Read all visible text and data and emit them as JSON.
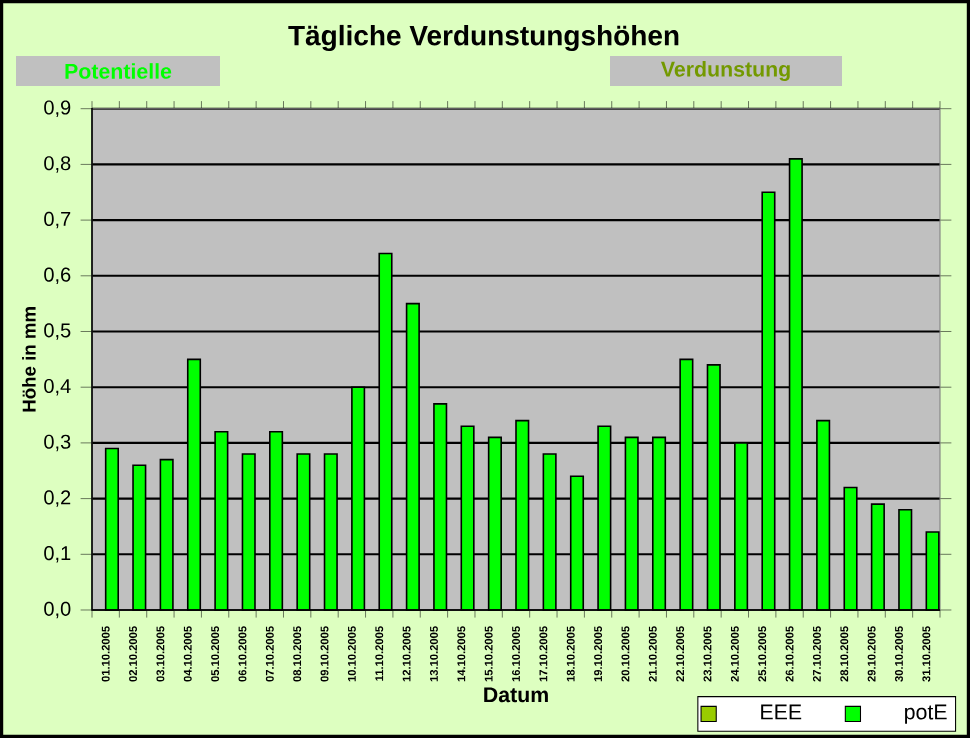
{
  "chart_data": {
    "type": "bar",
    "title": "Tägliche Verdunstungshöhen",
    "annotations": [
      "Potentielle",
      "Verdunstung"
    ],
    "xlabel": "Datum",
    "ylabel": "Höhe in mm",
    "categories": [
      "01.10.2005",
      "02.10.2005",
      "03.10.2005",
      "04.10.2005",
      "05.10.2005",
      "06.10.2005",
      "07.10.2005",
      "08.10.2005",
      "09.10.2005",
      "10.10.2005",
      "11.10.2005",
      "12.10.2005",
      "13.10.2005",
      "14.10.2005",
      "15.10.2005",
      "16.10.2005",
      "17.10.2005",
      "18.10.2005",
      "19.10.2005",
      "20.10.2005",
      "21.10.2005",
      "22.10.2005",
      "23.10.2005",
      "24.10.2005",
      "25.10.2005",
      "26.10.2005",
      "27.10.2005",
      "28.10.2005",
      "29.10.2005",
      "30.10.2005",
      "31.10.2005"
    ],
    "series": [
      {
        "name": "EEE",
        "color": "#99cc00",
        "values": [
          null,
          null,
          null,
          null,
          null,
          null,
          null,
          null,
          null,
          null,
          null,
          null,
          null,
          null,
          null,
          null,
          null,
          null,
          null,
          null,
          null,
          null,
          null,
          null,
          null,
          null,
          null,
          null,
          null,
          null,
          null
        ]
      },
      {
        "name": "potE",
        "color": "#00ff00",
        "values": [
          0.29,
          0.26,
          0.27,
          0.45,
          0.32,
          0.28,
          0.32,
          0.28,
          0.28,
          0.4,
          0.64,
          0.55,
          0.37,
          0.33,
          0.31,
          0.34,
          0.28,
          0.24,
          0.33,
          0.31,
          0.31,
          0.45,
          0.44,
          0.3,
          0.75,
          0.81,
          0.34,
          0.22,
          0.19,
          0.18,
          0.14
        ]
      }
    ],
    "ylim": [
      0,
      0.9
    ],
    "yticks": [
      {
        "value": 0,
        "label": "0,0"
      },
      {
        "value": 0.1,
        "label": "0,1"
      },
      {
        "value": 0.2,
        "label": "0,2"
      },
      {
        "value": 0.3,
        "label": "0,3"
      },
      {
        "value": 0.4,
        "label": "0,4"
      },
      {
        "value": 0.5,
        "label": "0,5"
      },
      {
        "value": 0.6,
        "label": "0,6"
      },
      {
        "value": 0.7,
        "label": "0,7"
      },
      {
        "value": 0.8,
        "label": "0,8"
      },
      {
        "value": 0.9,
        "label": "0,9"
      }
    ],
    "grid": "y",
    "legend": "bottom right"
  }
}
